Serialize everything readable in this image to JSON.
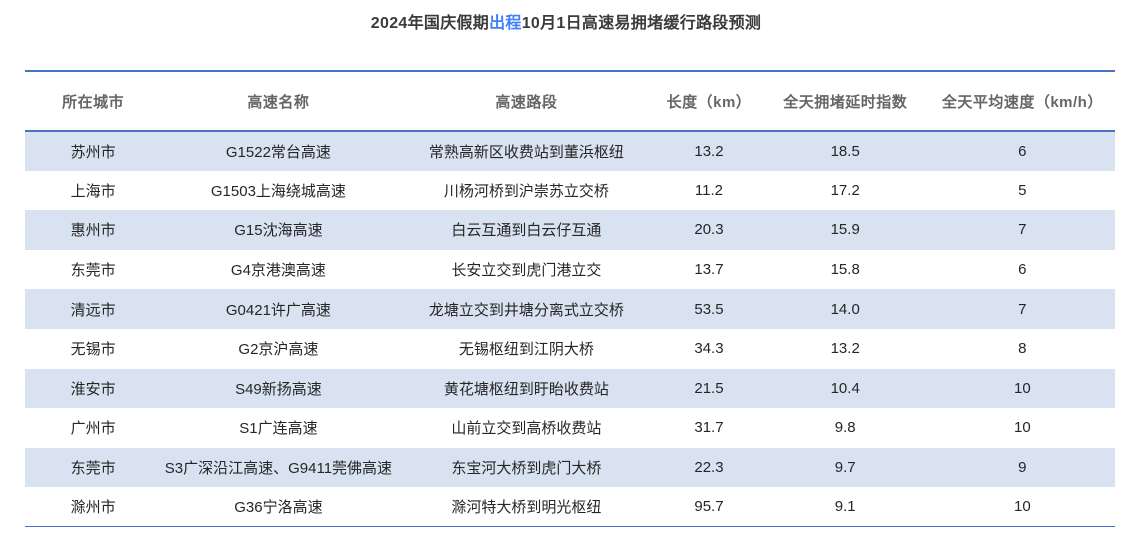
{
  "title": {
    "prefix": "2024年国庆假期",
    "highlight": "出程",
    "suffix": "10月1日高速易拥堵缓行路段预测"
  },
  "colors": {
    "accent_line": "#4472C4",
    "stripe": "#D9E2F1",
    "highlight_text": "#3D7EFB",
    "title_text": "#3B3B3B",
    "header_text": "#666666",
    "body_text": "#262626",
    "page_bg": "#FFFFFF"
  },
  "chart_data": {
    "type": "table",
    "columns": [
      "所在城市",
      "高速名称",
      "高速路段",
      "长度（km）",
      "全天拥堵延时指数",
      "全天平均速度（km/h）"
    ],
    "rows": [
      [
        "苏州市",
        "G1522常台高速",
        "常熟高新区收费站到董浜枢纽",
        "13.2",
        "18.5",
        "6"
      ],
      [
        "上海市",
        "G1503上海绕城高速",
        "川杨河桥到沪崇苏立交桥",
        "11.2",
        "17.2",
        "5"
      ],
      [
        "惠州市",
        "G15沈海高速",
        "白云互通到白云仔互通",
        "20.3",
        "15.9",
        "7"
      ],
      [
        "东莞市",
        "G4京港澳高速",
        "长安立交到虎门港立交",
        "13.7",
        "15.8",
        "6"
      ],
      [
        "清远市",
        "G0421许广高速",
        "龙塘立交到井塘分离式立交桥",
        "53.5",
        "14.0",
        "7"
      ],
      [
        "无锡市",
        "G2京沪高速",
        "无锡枢纽到江阴大桥",
        "34.3",
        "13.2",
        "8"
      ],
      [
        "淮安市",
        "S49新扬高速",
        "黄花塘枢纽到盱眙收费站",
        "21.5",
        "10.4",
        "10"
      ],
      [
        "广州市",
        "S1广连高速",
        "山前立交到高桥收费站",
        "31.7",
        "9.8",
        "10"
      ],
      [
        "东莞市",
        "S3广深沿江高速、G9411莞佛高速",
        "东宝河大桥到虎门大桥",
        "22.3",
        "9.7",
        "9"
      ],
      [
        "滁州市",
        "G36宁洛高速",
        "滁河特大桥到明光枢纽",
        "95.7",
        "9.1",
        "10"
      ]
    ]
  }
}
